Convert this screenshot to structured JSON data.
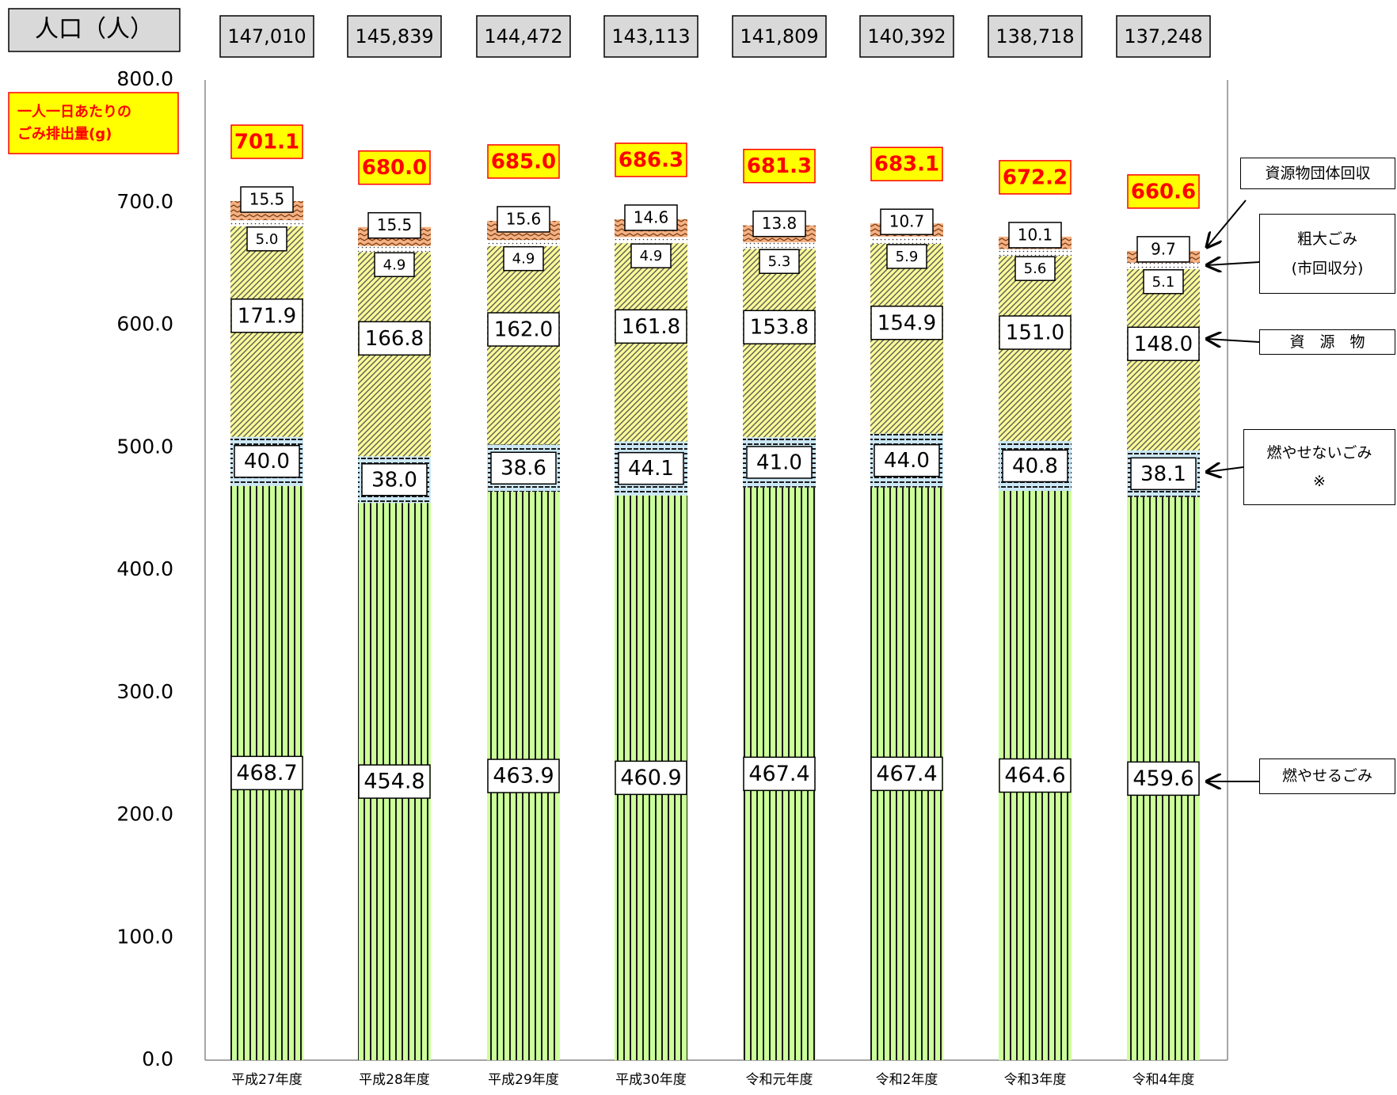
{
  "chart_data": {
    "type": "stacked_bar",
    "header_label": "人口（人）",
    "population": [
      "147,010",
      "145,839",
      "144,472",
      "143,113",
      "141,809",
      "140,392",
      "138,718",
      "137,248"
    ],
    "annotation": [
      "一人一日あたりの",
      "ごみ排出量(g)"
    ],
    "categories": [
      "平成27年度",
      "平成28年度",
      "平成29年度",
      "平成30年度",
      "令和元年度",
      "令和2年度",
      "令和3年度",
      "令和4年度"
    ],
    "series": [
      {
        "name": "燃やせるごみ",
        "color": "#ccff99",
        "values": [
          468.7,
          454.8,
          463.9,
          460.9,
          467.4,
          467.4,
          464.6,
          459.6
        ],
        "value_labels": [
          "468.7",
          "454.8",
          "463.9",
          "460.9",
          "467.4",
          "467.4",
          "464.6",
          "459.6"
        ]
      },
      {
        "name": "燃やせないごみ\n※",
        "color": "#cce8f6",
        "values": [
          40.0,
          38.0,
          38.6,
          44.1,
          41.0,
          44.0,
          40.8,
          38.1
        ],
        "value_labels": [
          "40.0",
          "38.0",
          "38.6",
          "44.1",
          "41.0",
          "44.0",
          "40.8",
          "38.1"
        ]
      },
      {
        "name": "資　源　物",
        "color": "#ffff99",
        "values": [
          171.9,
          166.8,
          162.0,
          161.8,
          153.8,
          154.9,
          151.0,
          148.0
        ],
        "value_labels": [
          "171.9",
          "166.8",
          "162.0",
          "161.8",
          "153.8",
          "154.9",
          "151.0",
          "148.0"
        ]
      },
      {
        "name": "粗大ごみ\n(市回収分)",
        "color": "#ffffff",
        "values": [
          5.0,
          4.9,
          4.9,
          4.9,
          5.3,
          5.9,
          5.6,
          5.1
        ],
        "value_labels": [
          "5.0",
          "4.9",
          "4.9",
          "4.9",
          "5.3",
          "5.9",
          "5.6",
          "5.1"
        ]
      },
      {
        "name": "資源物団体回収",
        "color": "#f4b183",
        "values": [
          15.5,
          15.5,
          15.6,
          14.6,
          13.8,
          10.7,
          10.1,
          9.7
        ],
        "value_labels": [
          "15.5",
          "15.5",
          "15.6",
          "14.6",
          "13.8",
          "10.7",
          "10.1",
          "9.7"
        ]
      }
    ],
    "total": {
      "values": [
        701.1,
        680.0,
        685.0,
        686.3,
        681.3,
        683.1,
        672.2,
        660.6
      ],
      "value_labels": [
        "701.1",
        "680.0",
        "685.0",
        "686.3",
        "681.3",
        "683.1",
        "672.2",
        "660.6"
      ]
    },
    "ylim": [
      0,
      800
    ],
    "yticks": [
      {
        "value": 0,
        "label": "0.0"
      },
      {
        "value": 100,
        "label": "100.0"
      },
      {
        "value": 200,
        "label": "200.0"
      },
      {
        "value": 300,
        "label": "300.0"
      },
      {
        "value": 400,
        "label": "400.0"
      },
      {
        "value": 500,
        "label": "500.0"
      },
      {
        "value": 600,
        "label": "600.0"
      },
      {
        "value": 700,
        "label": "700.0"
      },
      {
        "value": 800,
        "label": "800.0"
      }
    ],
    "grid": false
  }
}
